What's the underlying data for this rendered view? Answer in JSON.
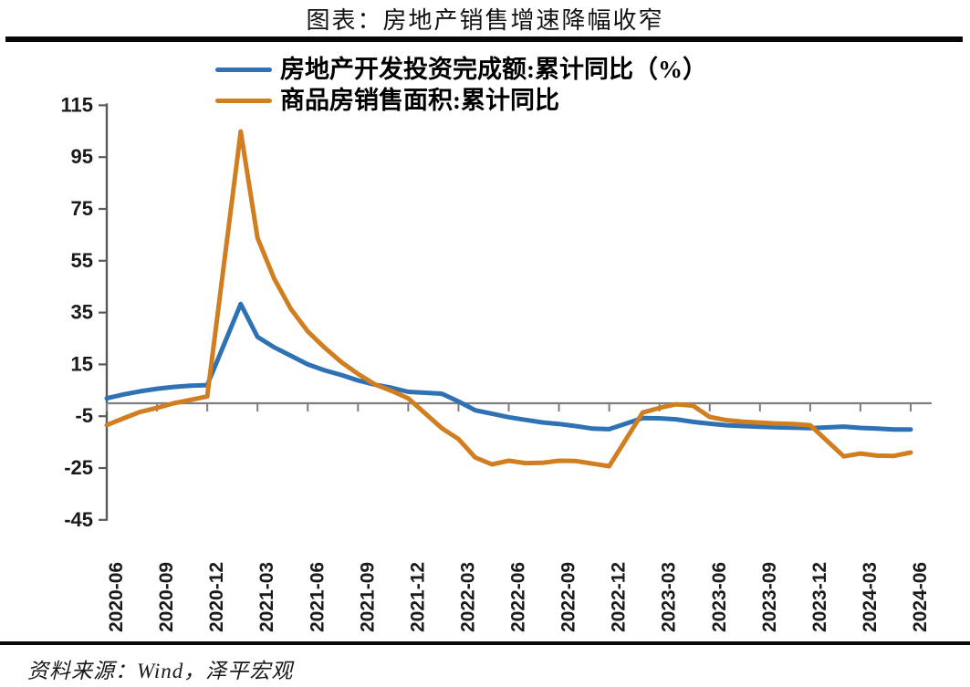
{
  "title": "图表：房地产销售增速降幅收窄",
  "source_note": "资料来源：Wind，泽平宏观",
  "colors": {
    "series_investment": "#2E72B5",
    "series_sales": "#D07E20",
    "zero_line": "#7F7F7F",
    "axis": "#595959",
    "tick_label": "#1a1a1a",
    "divider": "#070707"
  },
  "chart_data": {
    "type": "line",
    "title": "图表：房地产销售增速降幅收窄",
    "xlabel": "",
    "ylabel": "",
    "ylim": [
      -45,
      115
    ],
    "y_ticks": [
      115,
      95,
      75,
      55,
      35,
      15,
      -5,
      -25,
      -45
    ],
    "grid": false,
    "zero_line": true,
    "legend_position": "top-left",
    "x_label_step": 3,
    "x_label_rotation": -90,
    "categories": [
      "2020-06",
      "2020-07",
      "2020-08",
      "2020-09",
      "2020-10",
      "2020-11",
      "2020-12",
      "2021-01",
      "2021-02",
      "2021-03",
      "2021-04",
      "2021-05",
      "2021-06",
      "2021-07",
      "2021-08",
      "2021-09",
      "2021-10",
      "2021-11",
      "2021-12",
      "2022-01",
      "2022-02",
      "2022-03",
      "2022-04",
      "2022-05",
      "2022-06",
      "2022-07",
      "2022-08",
      "2022-09",
      "2022-10",
      "2022-11",
      "2022-12",
      "2023-01",
      "2023-02",
      "2023-03",
      "2023-04",
      "2023-05",
      "2023-06",
      "2023-07",
      "2023-08",
      "2023-09",
      "2023-10",
      "2023-11",
      "2023-12",
      "2024-01",
      "2024-02",
      "2024-03",
      "2024-04",
      "2024-05",
      "2024-06"
    ],
    "series": [
      {
        "name": "房地产开发投资完成额:累计同比（%）",
        "color": "#2E72B5",
        "values": [
          1.9,
          3.4,
          4.6,
          5.6,
          6.3,
          6.8,
          7.0,
          null,
          38.3,
          25.6,
          21.6,
          18.3,
          15.0,
          12.7,
          10.9,
          8.8,
          7.2,
          6.0,
          4.4,
          null,
          3.7,
          0.7,
          -2.7,
          -4.0,
          -5.4,
          -6.4,
          -7.4,
          -8.0,
          -8.8,
          -9.8,
          -10.0,
          null,
          -5.7,
          -5.8,
          -6.2,
          -7.2,
          -7.9,
          -8.5,
          -8.8,
          -9.1,
          -9.3,
          -9.4,
          -9.6,
          null,
          -9.0,
          -9.5,
          -9.8,
          -10.1,
          -10.1
        ]
      },
      {
        "name": "商品房销售面积:累计同比",
        "color": "#D07E20",
        "values": [
          -8.4,
          -5.8,
          -3.3,
          -1.8,
          0.0,
          1.3,
          2.6,
          null,
          104.9,
          63.8,
          48.1,
          36.3,
          27.7,
          21.5,
          15.9,
          11.3,
          7.3,
          4.8,
          1.9,
          null,
          -9.6,
          -13.8,
          -20.9,
          -23.6,
          -22.2,
          -23.1,
          -23.0,
          -22.2,
          -22.3,
          -23.3,
          -24.3,
          null,
          -3.6,
          -1.8,
          -0.4,
          -0.9,
          -5.3,
          -6.5,
          -7.1,
          -7.5,
          -7.8,
          -8.0,
          -8.5,
          null,
          -20.5,
          -19.4,
          -20.2,
          -20.3,
          -19.0
        ]
      }
    ]
  }
}
